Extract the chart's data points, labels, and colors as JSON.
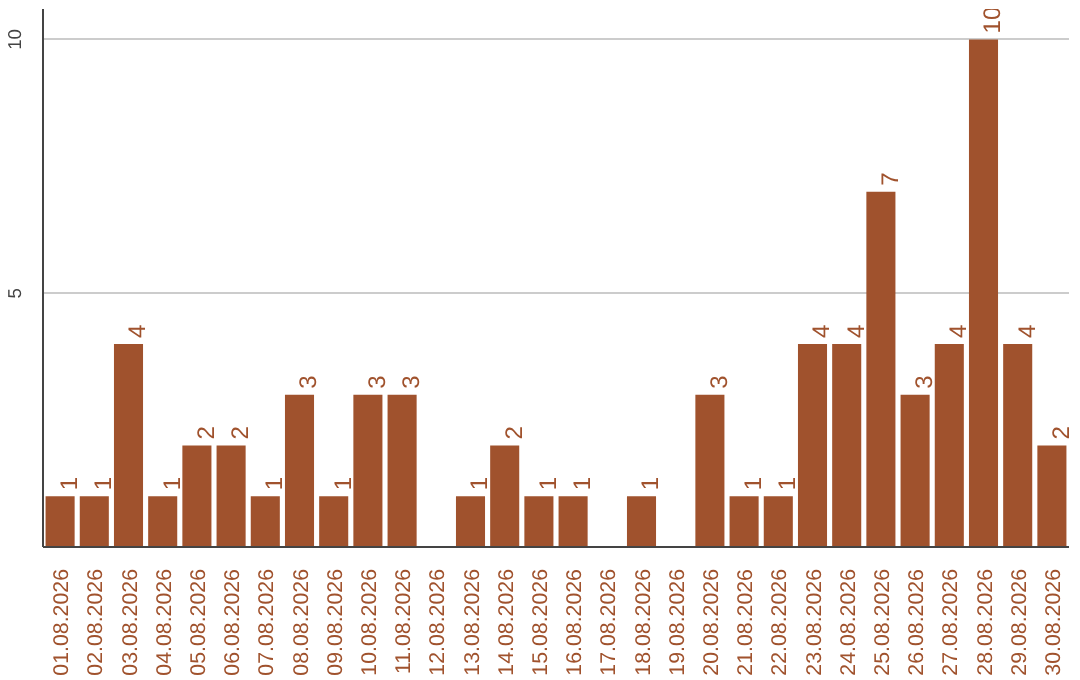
{
  "chart_data": {
    "type": "bar",
    "categories": [
      "01.08.2026",
      "02.08.2026",
      "03.08.2026",
      "04.08.2026",
      "05.08.2026",
      "06.08.2026",
      "07.08.2026",
      "08.08.2026",
      "09.08.2026",
      "10.08.2026",
      "11.08.2026",
      "12.08.2026",
      "13.08.2026",
      "14.08.2026",
      "15.08.2026",
      "16.08.2026",
      "17.08.2026",
      "18.08.2026",
      "19.08.2026",
      "20.08.2026",
      "21.08.2026",
      "22.08.2026",
      "23.08.2026",
      "24.08.2026",
      "25.08.2026",
      "26.08.2026",
      "27.08.2026",
      "28.08.2026",
      "29.08.2026",
      "30.08.2026"
    ],
    "values": [
      1,
      1,
      4,
      1,
      2,
      2,
      1,
      3,
      1,
      3,
      3,
      0,
      1,
      2,
      1,
      1,
      0,
      1,
      0,
      3,
      1,
      1,
      4,
      4,
      7,
      3,
      4,
      10,
      4,
      2
    ],
    "value_labels": [
      "1",
      "1",
      "4",
      "1",
      "2",
      "2",
      "1",
      "3",
      "1",
      "3",
      "3",
      null,
      "1",
      "2",
      "1",
      "1",
      null,
      "1",
      null,
      "3",
      "1",
      "1",
      "4",
      "4",
      "7",
      "3",
      "4",
      "10",
      "4",
      "2"
    ],
    "color": "#a0522d",
    "ylim": [
      0,
      10.6
    ],
    "yticks": [
      5,
      10
    ],
    "grid": "y"
  }
}
